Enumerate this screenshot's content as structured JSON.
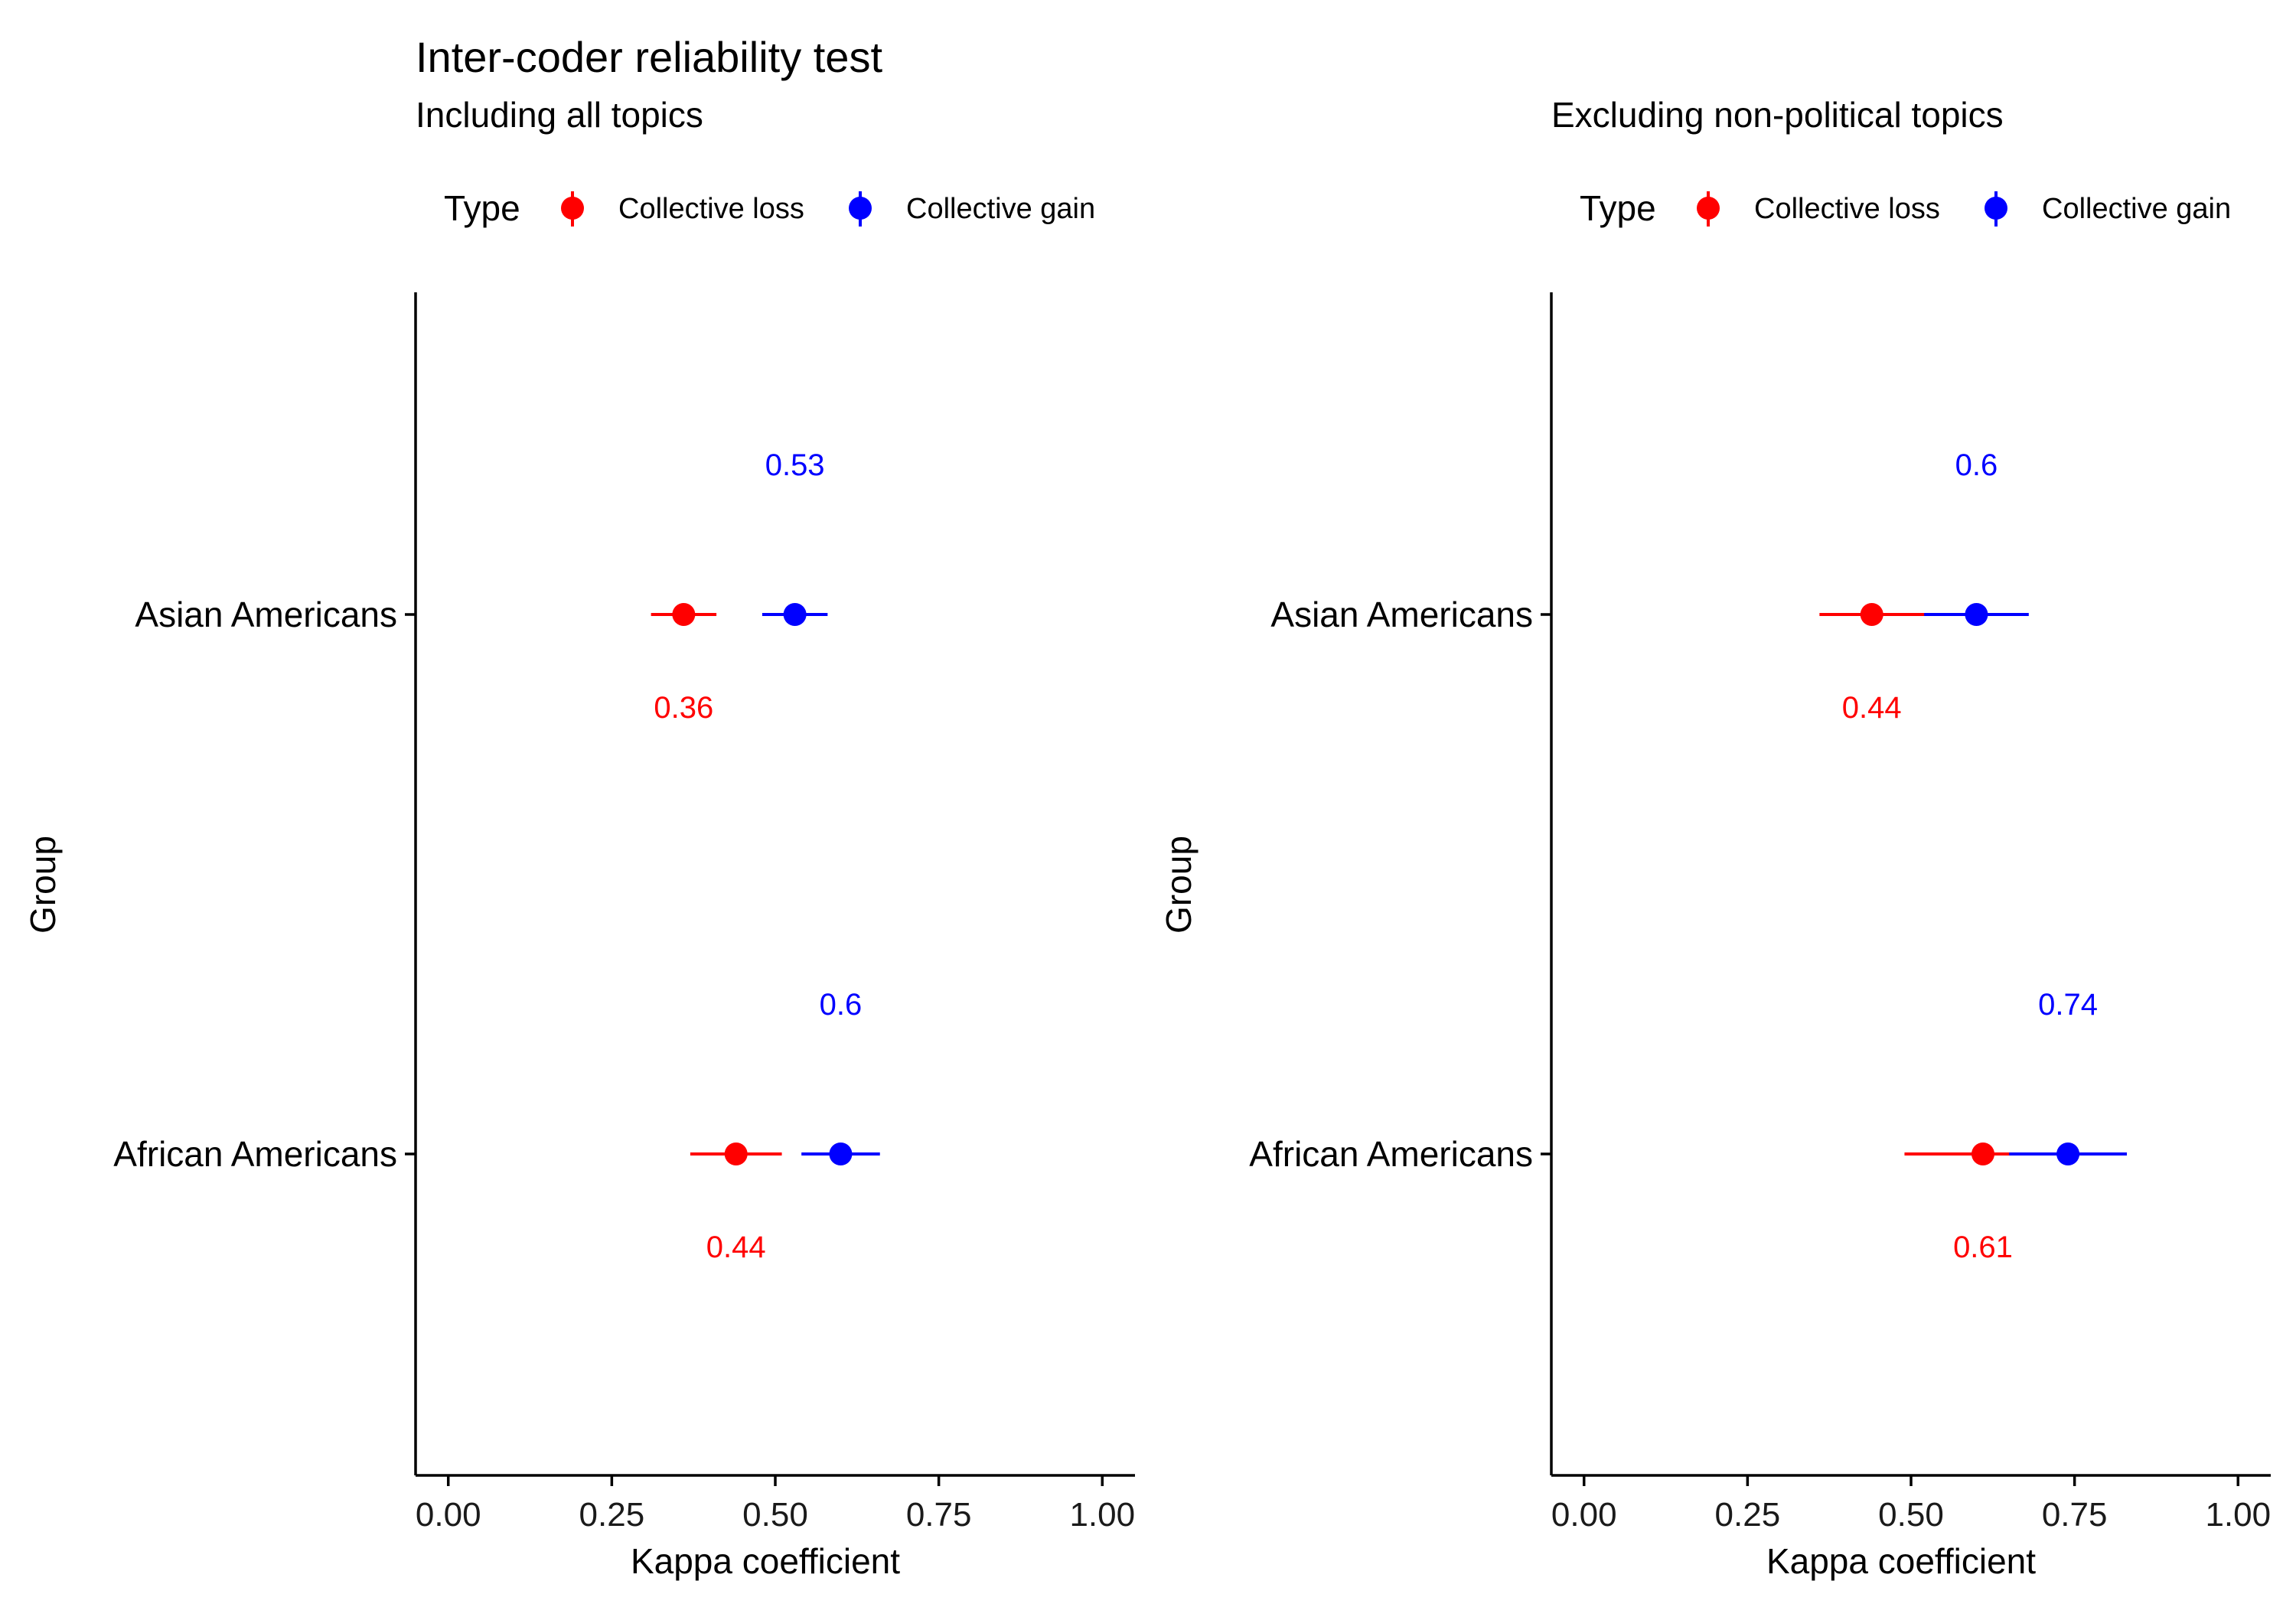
{
  "figure": {
    "title": "Inter-coder reliability test"
  },
  "colors": {
    "Collective loss": "#ff0000",
    "Collective gain": "#0000ff"
  },
  "legend": {
    "title": "Type",
    "entries": [
      "Collective loss",
      "Collective gain"
    ],
    "placement": "top"
  },
  "chart_data": [
    {
      "type": "scatter",
      "subtitle": "Including all topics",
      "xlabel": "Kappa coefficient",
      "ylabel": "Group",
      "xlim": [
        -0.05,
        1.05
      ],
      "xticks": [
        "0.00",
        "0.25",
        "0.50",
        "0.75",
        "1.00"
      ],
      "xtick_values": [
        0,
        0.25,
        0.5,
        0.75,
        1.0
      ],
      "categories": [
        "Asian Americans",
        "African Americans"
      ],
      "grid": false,
      "series": [
        {
          "name": "Collective loss",
          "values": [
            0.36,
            0.44
          ],
          "ci_low": [
            0.31,
            0.37
          ],
          "ci_high": [
            0.41,
            0.51
          ],
          "labels": [
            "0.36",
            "0.44"
          ]
        },
        {
          "name": "Collective gain",
          "values": [
            0.53,
            0.6
          ],
          "ci_low": [
            0.48,
            0.54
          ],
          "ci_high": [
            0.58,
            0.66
          ],
          "labels": [
            "0.53",
            "0.6"
          ]
        }
      ]
    },
    {
      "type": "scatter",
      "subtitle": "Excluding non-political topics",
      "xlabel": "Kappa coefficient",
      "ylabel": "Group",
      "xlim": [
        -0.05,
        1.05
      ],
      "xticks": [
        "0.00",
        "0.25",
        "0.50",
        "0.75",
        "1.00"
      ],
      "xtick_values": [
        0,
        0.25,
        0.5,
        0.75,
        1.0
      ],
      "categories": [
        "Asian Americans",
        "African Americans"
      ],
      "grid": false,
      "series": [
        {
          "name": "Collective loss",
          "values": [
            0.44,
            0.61
          ],
          "ci_low": [
            0.36,
            0.49
          ],
          "ci_high": [
            0.53,
            0.74
          ],
          "labels": [
            "0.44",
            "0.61"
          ]
        },
        {
          "name": "Collective gain",
          "values": [
            0.6,
            0.74
          ],
          "ci_low": [
            0.52,
            0.65
          ],
          "ci_high": [
            0.68,
            0.83
          ],
          "labels": [
            "0.6",
            "0.74"
          ]
        }
      ]
    }
  ]
}
